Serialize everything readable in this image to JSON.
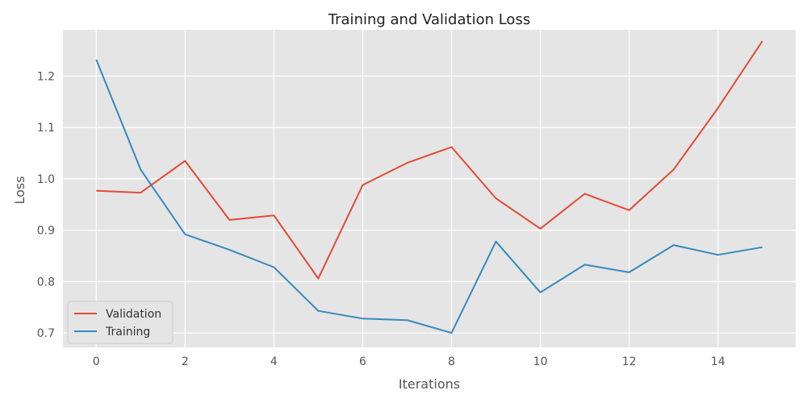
{
  "chart_data": {
    "type": "line",
    "title": "Training and Validation Loss",
    "xlabel": "Iterations",
    "ylabel": "Loss",
    "x": [
      0,
      1,
      2,
      3,
      4,
      5,
      6,
      7,
      8,
      9,
      10,
      11,
      12,
      13,
      14,
      15
    ],
    "xlim": [
      -0.75,
      15.75
    ],
    "ylim": [
      0.672,
      1.29
    ],
    "xticks": [
      0,
      2,
      4,
      6,
      8,
      10,
      12,
      14
    ],
    "yticks": [
      0.7,
      0.8,
      0.9,
      1.0,
      1.1,
      1.2
    ],
    "xtick_labels": [
      "0",
      "2",
      "4",
      "6",
      "8",
      "10",
      "12",
      "14"
    ],
    "ytick_labels": [
      "0.7",
      "0.8",
      "0.9",
      "1.0",
      "1.1",
      "1.2"
    ],
    "grid": true,
    "legend_position": "lower-left",
    "series": [
      {
        "name": "Validation",
        "color": "#E24A33",
        "values": [
          0.977,
          0.973,
          1.035,
          0.92,
          0.929,
          0.806,
          0.988,
          1.031,
          1.062,
          0.962,
          0.903,
          0.971,
          0.939,
          1.018,
          1.138,
          1.268
        ]
      },
      {
        "name": "Training",
        "color": "#348ABD",
        "values": [
          1.232,
          1.018,
          0.892,
          0.862,
          0.828,
          0.743,
          0.728,
          0.725,
          0.7,
          0.878,
          0.779,
          0.833,
          0.818,
          0.871,
          0.852,
          0.867
        ]
      }
    ]
  }
}
